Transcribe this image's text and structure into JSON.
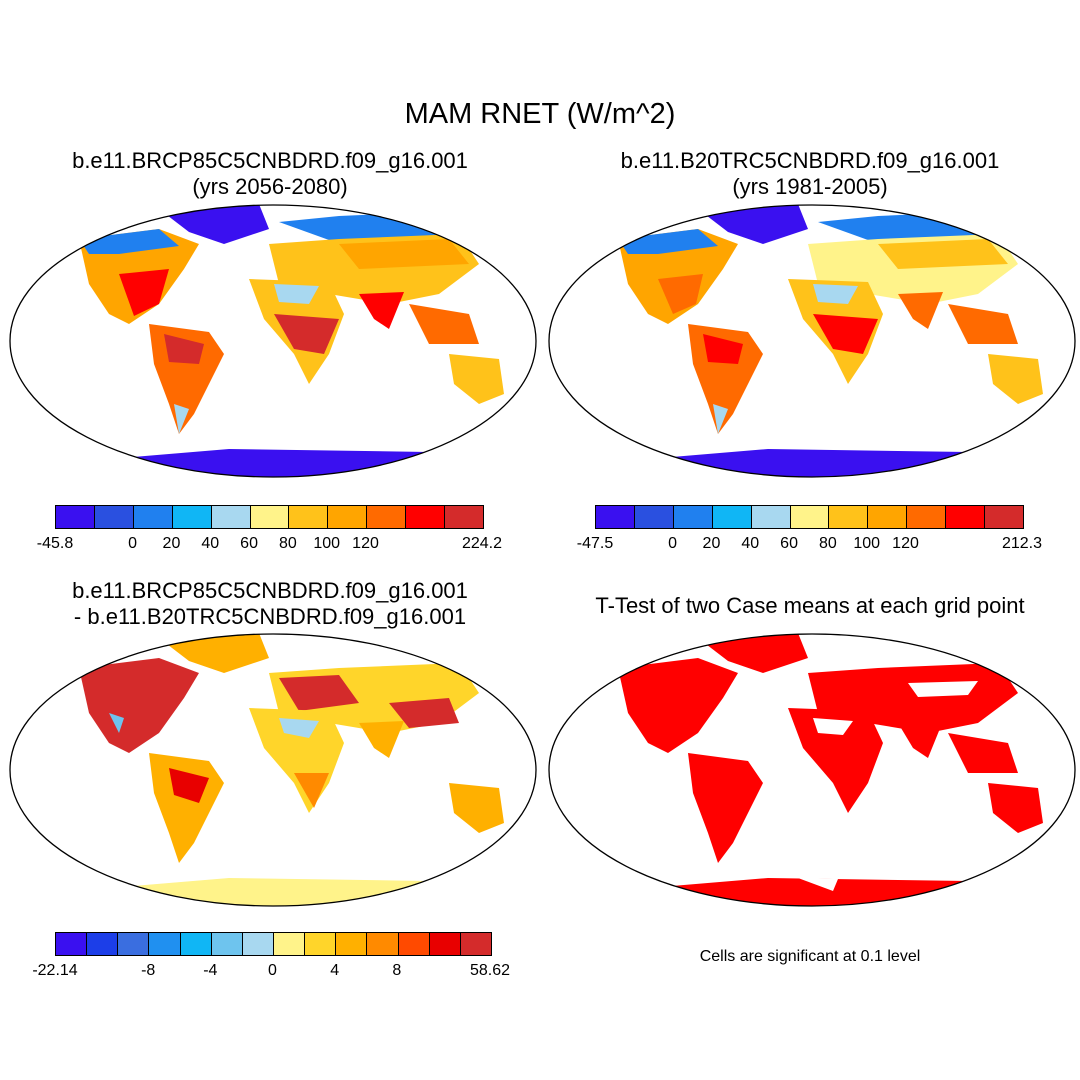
{
  "figure": {
    "title": "MAM RNET (W/m^2)"
  },
  "panels": [
    {
      "title_line1": "b.e11.BRCP85C5CNBDRD.f09_g16.001",
      "title_line2": "(yrs 2056-2080)",
      "colorbar": {
        "colors": [
          "#3a10f0",
          "#2a50e0",
          "#2080ef",
          "#10b6f5",
          "#a8d8f0",
          "#fff38a",
          "#ffc21a",
          "#ffa500",
          "#ff6a00",
          "#ff0000",
          "#d42b2b"
        ],
        "labels": [
          "-45.8",
          "0",
          "20",
          "40",
          "60",
          "80",
          "100",
          "120",
          "224.2"
        ]
      }
    },
    {
      "title_line1": "b.e11.B20TRC5CNBDRD.f09_g16.001",
      "title_line2": "(yrs 1981-2005)",
      "colorbar": {
        "colors": [
          "#3a10f0",
          "#2a50e0",
          "#2080ef",
          "#10b6f5",
          "#a8d8f0",
          "#fff38a",
          "#ffc21a",
          "#ffa500",
          "#ff6a00",
          "#ff0000",
          "#d42b2b"
        ],
        "labels": [
          "-47.5",
          "0",
          "20",
          "40",
          "60",
          "80",
          "100",
          "120",
          "212.3"
        ]
      }
    },
    {
      "title_line1": "b.e11.BRCP85C5CNBDRD.f09_g16.001",
      "title_line2": "- b.e11.B20TRC5CNBDRD.f09_g16.001",
      "colorbar": {
        "colors": [
          "#3a10f0",
          "#1c3ee8",
          "#3a6ee0",
          "#2090f0",
          "#10b6f5",
          "#6ec4ee",
          "#a8d8f0",
          "#fff38a",
          "#ffd52a",
          "#ffb000",
          "#ff8a00",
          "#ff4a00",
          "#e80000",
          "#d42b2b"
        ],
        "labels": [
          "-22.14",
          "-8",
          "-4",
          "0",
          "4",
          "8",
          "58.62"
        ]
      }
    },
    {
      "title_line1": "T-Test of two Case means at each grid point",
      "note": "Cells are significant at 0.1 level",
      "significant_color": "#ff0000"
    }
  ]
}
